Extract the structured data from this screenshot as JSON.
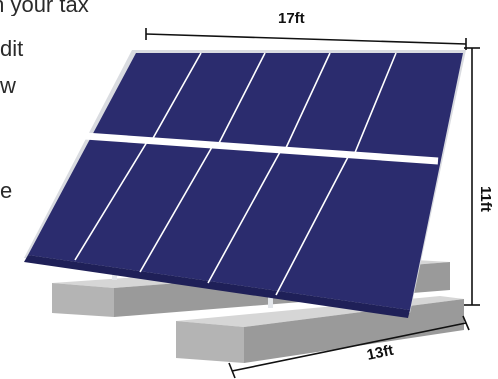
{
  "background_text": {
    "lines": [
      "th your tax",
      "dit",
      "w",
      "e"
    ]
  },
  "dimensions": {
    "width_label": "17ft",
    "height_label": "11ft",
    "depth_label": "13ft"
  },
  "colors": {
    "panel": "#2b2c6e",
    "panel_dark": "#1f2058",
    "grid_line": "#ffffff",
    "frame": "#d9dbe0",
    "leg": "#e3e6ea",
    "concrete_top": "#d6d6d6",
    "concrete_front": "#b4b4b4",
    "concrete_side": "#9a9a9a",
    "dimension_line": "#111111"
  }
}
